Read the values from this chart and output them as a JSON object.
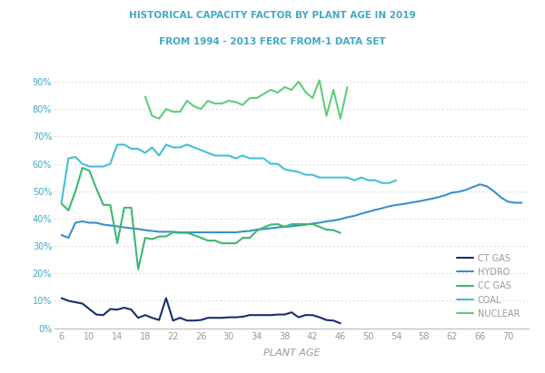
{
  "title_line1": "HISTORICAL CAPACITY FACTOR BY PLANT AGE IN 2019",
  "title_line2": "FROM 1994 - 2013 FERC FROM-1 DATA SET",
  "xlabel": "PLANT AGE",
  "title_color": "#3fa9c8",
  "xlabel_color": "#999999",
  "tick_color_x": "#999999",
  "tick_color_y": "#3fa9c8",
  "background_color": "#ffffff",
  "grid_color": "#cccccc",
  "ylim": [
    0,
    0.98
  ],
  "xlim": [
    5,
    73
  ],
  "ytick_labels": [
    "0%",
    "10%",
    "20%",
    "30%",
    "40%",
    "50%",
    "60%",
    "70%",
    "80%",
    "90%"
  ],
  "ytick_vals": [
    0,
    0.1,
    0.2,
    0.3,
    0.4,
    0.5,
    0.6,
    0.7,
    0.8,
    0.9
  ],
  "xtick_vals": [
    6,
    10,
    14,
    18,
    22,
    26,
    30,
    34,
    38,
    42,
    46,
    50,
    54,
    58,
    62,
    66,
    70
  ],
  "nuclear": {
    "x": [
      18,
      19,
      20,
      21,
      22,
      23,
      24,
      25,
      26,
      27,
      28,
      29,
      30,
      31,
      32,
      33,
      34,
      35,
      36,
      37,
      38,
      39,
      40,
      41,
      42,
      43,
      44,
      45,
      46,
      47
    ],
    "y": [
      0.845,
      0.775,
      0.765,
      0.8,
      0.79,
      0.79,
      0.83,
      0.81,
      0.8,
      0.83,
      0.82,
      0.82,
      0.83,
      0.825,
      0.815,
      0.84,
      0.84,
      0.855,
      0.87,
      0.86,
      0.88,
      0.87,
      0.9,
      0.862,
      0.84,
      0.905,
      0.775,
      0.87,
      0.765,
      0.88
    ],
    "color": "#5fcc7a",
    "label": "NUCLEAR",
    "lw": 1.5
  },
  "coal": {
    "x": [
      6,
      7,
      8,
      9,
      10,
      11,
      12,
      13,
      14,
      15,
      16,
      17,
      18,
      19,
      20,
      21,
      22,
      23,
      24,
      25,
      26,
      27,
      28,
      29,
      30,
      31,
      32,
      33,
      34,
      35,
      36,
      37,
      38,
      39,
      40,
      41,
      42,
      43,
      44,
      45,
      46,
      47,
      48,
      49,
      50,
      51,
      52,
      53,
      54
    ],
    "y": [
      0.46,
      0.62,
      0.625,
      0.6,
      0.59,
      0.59,
      0.59,
      0.6,
      0.67,
      0.67,
      0.655,
      0.655,
      0.64,
      0.66,
      0.63,
      0.67,
      0.66,
      0.66,
      0.67,
      0.66,
      0.65,
      0.64,
      0.63,
      0.63,
      0.63,
      0.62,
      0.63,
      0.62,
      0.62,
      0.62,
      0.6,
      0.6,
      0.58,
      0.575,
      0.57,
      0.56,
      0.56,
      0.55,
      0.55,
      0.55,
      0.55,
      0.55,
      0.54,
      0.55,
      0.54,
      0.54,
      0.53,
      0.53,
      0.54
    ],
    "color": "#45c0d4",
    "label": "COAL",
    "lw": 1.5
  },
  "cc_gas": {
    "x": [
      6,
      7,
      8,
      9,
      10,
      11,
      12,
      13,
      14,
      15,
      16,
      17,
      18,
      19,
      20,
      21,
      22,
      23,
      24,
      25,
      26,
      27,
      28,
      29,
      30,
      31,
      32,
      33,
      34,
      35,
      36,
      37,
      38,
      39,
      40,
      41,
      42,
      43,
      44,
      45,
      46
    ],
    "y": [
      0.455,
      0.43,
      0.5,
      0.585,
      0.575,
      0.51,
      0.45,
      0.45,
      0.31,
      0.44,
      0.44,
      0.215,
      0.33,
      0.325,
      0.335,
      0.335,
      0.35,
      0.348,
      0.348,
      0.34,
      0.33,
      0.32,
      0.32,
      0.31,
      0.31,
      0.31,
      0.33,
      0.33,
      0.355,
      0.368,
      0.378,
      0.38,
      0.37,
      0.38,
      0.38,
      0.38,
      0.38,
      0.37,
      0.36,
      0.358,
      0.348
    ],
    "color": "#3db870",
    "label": "CC GAS",
    "lw": 1.5
  },
  "hydro": {
    "x": [
      6,
      7,
      8,
      9,
      10,
      11,
      12,
      13,
      14,
      15,
      16,
      17,
      18,
      19,
      20,
      21,
      22,
      23,
      24,
      25,
      26,
      27,
      28,
      29,
      30,
      31,
      32,
      33,
      34,
      35,
      36,
      37,
      38,
      39,
      40,
      41,
      42,
      43,
      44,
      45,
      46,
      47,
      48,
      49,
      50,
      51,
      52,
      53,
      54,
      55,
      56,
      57,
      58,
      59,
      60,
      61,
      62,
      63,
      64,
      65,
      66,
      67,
      68,
      69,
      70,
      71,
      72
    ],
    "y": [
      0.34,
      0.33,
      0.385,
      0.39,
      0.385,
      0.385,
      0.378,
      0.375,
      0.372,
      0.368,
      0.365,
      0.362,
      0.358,
      0.355,
      0.352,
      0.352,
      0.352,
      0.35,
      0.35,
      0.35,
      0.35,
      0.35,
      0.35,
      0.35,
      0.35,
      0.35,
      0.353,
      0.355,
      0.36,
      0.362,
      0.365,
      0.368,
      0.37,
      0.372,
      0.375,
      0.378,
      0.382,
      0.385,
      0.39,
      0.393,
      0.398,
      0.405,
      0.41,
      0.418,
      0.425,
      0.432,
      0.438,
      0.445,
      0.45,
      0.453,
      0.458,
      0.462,
      0.467,
      0.472,
      0.478,
      0.485,
      0.495,
      0.498,
      0.505,
      0.515,
      0.525,
      0.518,
      0.5,
      0.478,
      0.462,
      0.458,
      0.458
    ],
    "color": "#3b8fcc",
    "label": "HYDRO",
    "lw": 1.5
  },
  "ct_gas": {
    "x": [
      6,
      7,
      8,
      9,
      10,
      11,
      12,
      13,
      14,
      15,
      16,
      17,
      18,
      19,
      20,
      21,
      22,
      23,
      24,
      25,
      26,
      27,
      28,
      29,
      30,
      31,
      32,
      33,
      34,
      35,
      36,
      37,
      38,
      39,
      40,
      41,
      42,
      43,
      44,
      45,
      46
    ],
    "y": [
      0.11,
      0.1,
      0.095,
      0.09,
      0.07,
      0.05,
      0.048,
      0.07,
      0.068,
      0.075,
      0.068,
      0.038,
      0.048,
      0.038,
      0.03,
      0.11,
      0.028,
      0.038,
      0.028,
      0.028,
      0.03,
      0.038,
      0.038,
      0.038,
      0.04,
      0.04,
      0.042,
      0.048,
      0.048,
      0.048,
      0.048,
      0.05,
      0.05,
      0.058,
      0.04,
      0.048,
      0.048,
      0.04,
      0.03,
      0.028,
      0.018
    ],
    "color": "#1a2d6e",
    "label": "CT GAS",
    "lw": 1.5
  }
}
